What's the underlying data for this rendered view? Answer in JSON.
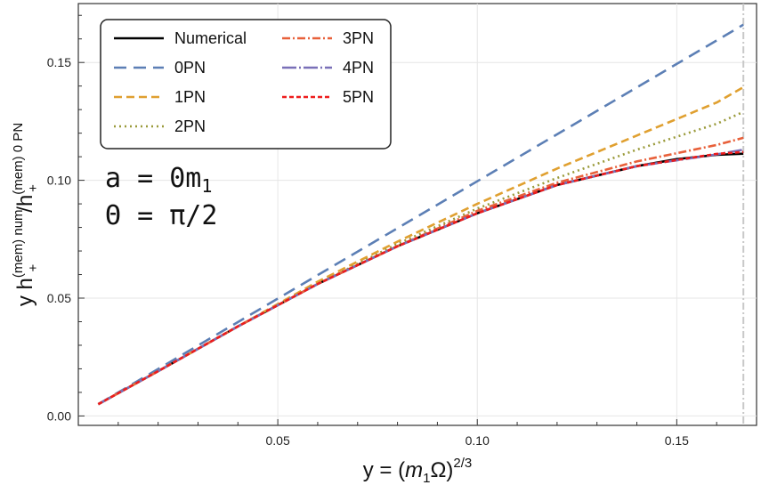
{
  "chart_data": {
    "type": "line",
    "xlabel_parts": {
      "pre": "y = (",
      "m": "m",
      "sub1": "1",
      "omega": "Ω)",
      "exp": "2/3"
    },
    "ylabel_parts": {
      "pre": "y h",
      "sup1": "(mem) num",
      "sub1": "+",
      "slash": "/h",
      "sup2": "(mem) 0 PN",
      "sub2": "+"
    },
    "xlim": [
      0.0,
      0.17
    ],
    "ylim": [
      -0.004,
      0.175
    ],
    "xticks": [
      0.05,
      0.1,
      0.15
    ],
    "xtick_labels": [
      "0.05",
      "0.10",
      "0.15"
    ],
    "yticks": [
      0.0,
      0.05,
      0.1,
      0.15
    ],
    "ytick_labels": [
      "0.00",
      "0.05",
      "0.10",
      "0.15"
    ],
    "grid": true,
    "legend_position": "top-left",
    "annotations": [
      {
        "text_parts": [
          "a",
          " = ",
          "0m",
          "1"
        ]
      },
      {
        "text_parts": [
          "Θ",
          " = ",
          "π/",
          "2"
        ]
      }
    ],
    "vertical_marker": {
      "x": 0.1667,
      "color": "#c8c8c8"
    },
    "series": [
      {
        "name": "Numerical",
        "color": "#000000",
        "dash": "",
        "x": [
          0.005,
          0.02,
          0.04,
          0.06,
          0.08,
          0.1,
          0.12,
          0.14,
          0.15,
          0.16,
          0.1667
        ],
        "y": [
          0.005,
          0.019,
          0.038,
          0.056,
          0.072,
          0.086,
          0.098,
          0.106,
          0.109,
          0.1108,
          0.1113
        ]
      },
      {
        "name": "0PN",
        "color": "#5c7fb5",
        "dash": "14,8",
        "x": [
          0.005,
          0.1667
        ],
        "y": [
          0.005,
          0.166
        ]
      },
      {
        "name": "1PN",
        "color": "#e0a030",
        "dash": "9,5",
        "x": [
          0.005,
          0.02,
          0.04,
          0.06,
          0.08,
          0.1,
          0.12,
          0.14,
          0.16,
          0.1667
        ],
        "y": [
          0.005,
          0.019,
          0.038,
          0.057,
          0.074,
          0.09,
          0.105,
          0.119,
          0.133,
          0.1395
        ]
      },
      {
        "name": "2PN",
        "color": "#9a9a3a",
        "dash": "2,4",
        "x": [
          0.005,
          0.02,
          0.04,
          0.06,
          0.08,
          0.1,
          0.12,
          0.14,
          0.16,
          0.1667
        ],
        "y": [
          0.005,
          0.019,
          0.038,
          0.056,
          0.073,
          0.088,
          0.101,
          0.113,
          0.124,
          0.129
        ]
      },
      {
        "name": "3PN",
        "color": "#e8603a",
        "dash": "9,3,2,3",
        "x": [
          0.005,
          0.02,
          0.04,
          0.06,
          0.08,
          0.1,
          0.12,
          0.14,
          0.16,
          0.1667
        ],
        "y": [
          0.005,
          0.019,
          0.038,
          0.056,
          0.072,
          0.087,
          0.099,
          0.108,
          0.115,
          0.118
        ]
      },
      {
        "name": "4PN",
        "color": "#7a70b8",
        "dash": "16,3,2,3",
        "x": [
          0.005,
          0.02,
          0.04,
          0.06,
          0.08,
          0.1,
          0.12,
          0.14,
          0.16,
          0.1667
        ],
        "y": [
          0.005,
          0.019,
          0.038,
          0.056,
          0.072,
          0.086,
          0.098,
          0.106,
          0.111,
          0.113
        ]
      },
      {
        "name": "5PN",
        "color": "#ee1c1c",
        "dash": "5,3",
        "x": [
          0.005,
          0.02,
          0.04,
          0.06,
          0.08,
          0.1,
          0.12,
          0.14,
          0.16,
          0.1667
        ],
        "y": [
          0.005,
          0.019,
          0.038,
          0.056,
          0.072,
          0.086,
          0.098,
          0.106,
          0.1112,
          0.112
        ]
      }
    ]
  }
}
